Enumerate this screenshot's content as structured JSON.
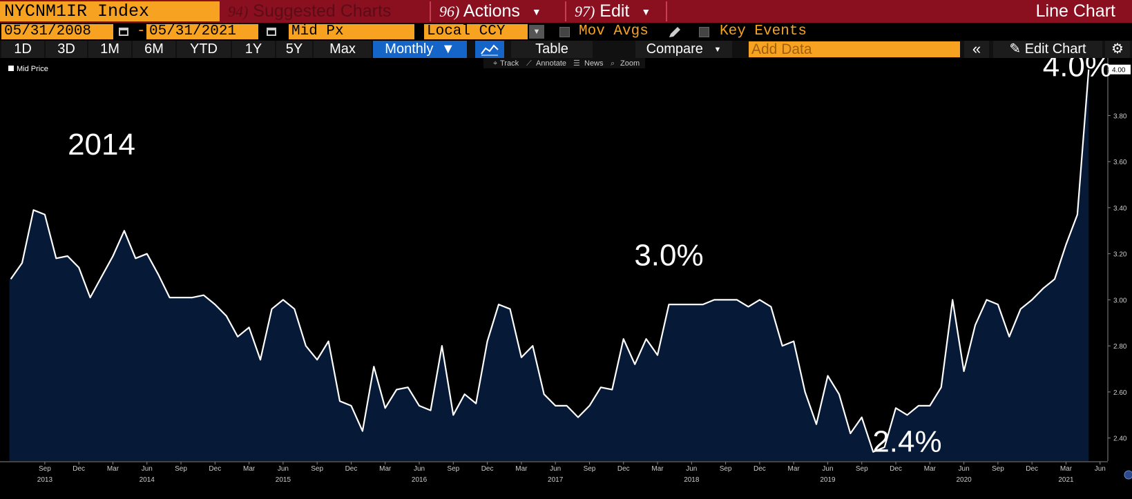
{
  "header": {
    "ticker": "NYCNM1IR Index",
    "suggested": {
      "num": "94)",
      "label": "Suggested Charts"
    },
    "actions": {
      "num": "96)",
      "label": "Actions"
    },
    "edit": {
      "num": "97)",
      "label": "Edit"
    },
    "chart_type": "Line Chart"
  },
  "controls": {
    "start_date": "05/31/2008",
    "dash": "-",
    "end_date": "05/31/2021",
    "price_field": "Mid Px",
    "currency": "Local CCY",
    "mov_avgs": "Mov Avgs",
    "key_events": "Key Events"
  },
  "toolbar": {
    "periods": [
      "1D",
      "3D",
      "1M",
      "6M",
      "YTD",
      "1Y",
      "5Y",
      "Max"
    ],
    "frequency": "Monthly",
    "table": "Table",
    "compare": "Compare",
    "add_data_placeholder": "Add Data",
    "edit_chart": "Edit Chart"
  },
  "chart_tools": [
    "Track",
    "Annotate",
    "News",
    "Zoom"
  ],
  "colors": {
    "orange": "#f7a321",
    "maroon": "#8a1020",
    "area": "#061a38",
    "active_blue": "#1565c8"
  },
  "chart_data": {
    "type": "area",
    "legend": "Mid Price",
    "ylim": [
      2.3,
      4.05
    ],
    "yticks": [
      "2.40",
      "2.60",
      "2.80",
      "3.00",
      "3.20",
      "3.40",
      "3.60",
      "3.80",
      "4.00"
    ],
    "last_value_label": "4.00",
    "annotations": [
      {
        "text": "2014",
        "date": "2014-02"
      },
      {
        "text": "3.0%",
        "date": "2018-04"
      },
      {
        "text": "2.4%",
        "date": "2020-01"
      },
      {
        "text": "4.0%",
        "date": "2021-04"
      }
    ],
    "x_month_ticks": [
      {
        "date": "2013-09",
        "label": "Sep"
      },
      {
        "date": "2013-12",
        "label": "Dec"
      },
      {
        "date": "2014-03",
        "label": "Mar"
      },
      {
        "date": "2014-06",
        "label": "Jun"
      },
      {
        "date": "2014-09",
        "label": "Sep"
      },
      {
        "date": "2014-12",
        "label": "Dec"
      },
      {
        "date": "2015-03",
        "label": "Mar"
      },
      {
        "date": "2015-06",
        "label": "Jun"
      },
      {
        "date": "2015-09",
        "label": "Sep"
      },
      {
        "date": "2015-12",
        "label": "Dec"
      },
      {
        "date": "2016-03",
        "label": "Mar"
      },
      {
        "date": "2016-06",
        "label": "Jun"
      },
      {
        "date": "2016-09",
        "label": "Sep"
      },
      {
        "date": "2016-12",
        "label": "Dec"
      },
      {
        "date": "2017-03",
        "label": "Mar"
      },
      {
        "date": "2017-06",
        "label": "Jun"
      },
      {
        "date": "2017-09",
        "label": "Sep"
      },
      {
        "date": "2017-12",
        "label": "Dec"
      },
      {
        "date": "2018-03",
        "label": "Mar"
      },
      {
        "date": "2018-06",
        "label": "Jun"
      },
      {
        "date": "2018-09",
        "label": "Sep"
      },
      {
        "date": "2018-12",
        "label": "Dec"
      },
      {
        "date": "2019-03",
        "label": "Mar"
      },
      {
        "date": "2019-06",
        "label": "Jun"
      },
      {
        "date": "2019-09",
        "label": "Sep"
      },
      {
        "date": "2019-12",
        "label": "Dec"
      },
      {
        "date": "2020-03",
        "label": "Mar"
      },
      {
        "date": "2020-06",
        "label": "Jun"
      },
      {
        "date": "2020-09",
        "label": "Sep"
      },
      {
        "date": "2020-12",
        "label": "Dec"
      },
      {
        "date": "2021-03",
        "label": "Mar"
      },
      {
        "date": "2021-06",
        "label": "Jun"
      }
    ],
    "x_year_labels": [
      {
        "date": "2013-09",
        "label": "2013"
      },
      {
        "date": "2014-06",
        "label": "2014"
      },
      {
        "date": "2015-06",
        "label": "2015"
      },
      {
        "date": "2016-06",
        "label": "2016"
      },
      {
        "date": "2017-06",
        "label": "2017"
      },
      {
        "date": "2018-06",
        "label": "2018"
      },
      {
        "date": "2019-06",
        "label": "2019"
      },
      {
        "date": "2020-06",
        "label": "2020"
      },
      {
        "date": "2021-03",
        "label": "2021"
      }
    ],
    "x": [
      "2013-06",
      "2013-07",
      "2013-08",
      "2013-09",
      "2013-10",
      "2013-11",
      "2013-12",
      "2014-01",
      "2014-02",
      "2014-03",
      "2014-04",
      "2014-05",
      "2014-06",
      "2014-07",
      "2014-08",
      "2014-09",
      "2014-10",
      "2014-11",
      "2014-12",
      "2015-01",
      "2015-02",
      "2015-03",
      "2015-04",
      "2015-05",
      "2015-06",
      "2015-07",
      "2015-08",
      "2015-09",
      "2015-10",
      "2015-11",
      "2015-12",
      "2016-01",
      "2016-02",
      "2016-03",
      "2016-04",
      "2016-05",
      "2016-06",
      "2016-07",
      "2016-08",
      "2016-09",
      "2016-10",
      "2016-11",
      "2016-12",
      "2017-01",
      "2017-02",
      "2017-03",
      "2017-04",
      "2017-05",
      "2017-06",
      "2017-07",
      "2017-08",
      "2017-09",
      "2017-10",
      "2017-11",
      "2017-12",
      "2018-01",
      "2018-02",
      "2018-03",
      "2018-04",
      "2018-05",
      "2018-06",
      "2018-07",
      "2018-08",
      "2018-09",
      "2018-10",
      "2018-11",
      "2018-12",
      "2019-01",
      "2019-02",
      "2019-03",
      "2019-04",
      "2019-05",
      "2019-06",
      "2019-07",
      "2019-08",
      "2019-09",
      "2019-10",
      "2019-11",
      "2019-12",
      "2020-01",
      "2020-02",
      "2020-03",
      "2020-04",
      "2020-05",
      "2020-06",
      "2020-07",
      "2020-08",
      "2020-09",
      "2020-10",
      "2020-11",
      "2020-12",
      "2021-01",
      "2021-02",
      "2021-03",
      "2021-04",
      "2021-05"
    ],
    "y": [
      3.09,
      3.16,
      3.39,
      3.37,
      3.18,
      3.19,
      3.14,
      3.01,
      3.1,
      3.19,
      3.3,
      3.18,
      3.2,
      3.11,
      3.01,
      3.01,
      3.01,
      3.02,
      2.98,
      2.93,
      2.84,
      2.88,
      2.74,
      2.96,
      3.0,
      2.96,
      2.8,
      2.74,
      2.82,
      2.56,
      2.54,
      2.43,
      2.71,
      2.53,
      2.61,
      2.62,
      2.54,
      2.52,
      2.8,
      2.5,
      2.59,
      2.55,
      2.82,
      2.98,
      2.96,
      2.75,
      2.8,
      2.59,
      2.54,
      2.54,
      2.49,
      2.54,
      2.62,
      2.61,
      2.83,
      2.72,
      2.83,
      2.76,
      2.98,
      2.98,
      2.98,
      2.98,
      3.0,
      3.0,
      3.0,
      2.97,
      3.0,
      2.97,
      2.8,
      2.82,
      2.6,
      2.46,
      2.67,
      2.59,
      2.42,
      2.49,
      2.34,
      2.36,
      2.53,
      2.5,
      2.54,
      2.54,
      2.62,
      3.0,
      2.69,
      2.89,
      3.0,
      2.98,
      2.84,
      2.96,
      3.0,
      3.05,
      3.09,
      3.24,
      3.37,
      4.0
    ]
  }
}
